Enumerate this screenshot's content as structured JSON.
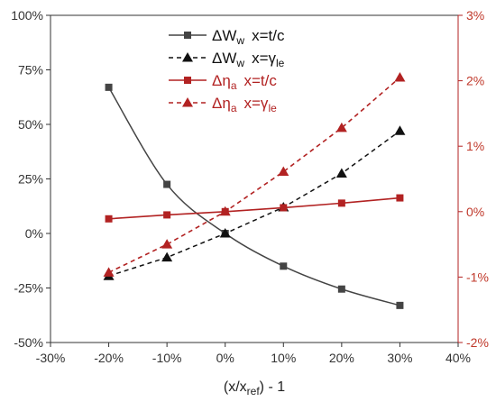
{
  "chart_data": {
    "type": "line",
    "xlabel": "(x/x_ref) - 1",
    "x": [
      -0.2,
      -0.1,
      0.0,
      0.1,
      0.2,
      0.3
    ],
    "xlim": [
      -0.3,
      0.4
    ],
    "x_ticks": [
      "-30%",
      "-20%",
      "-10%",
      "0%",
      "10%",
      "20%",
      "30%",
      "40%"
    ],
    "ylim_left": [
      -0.5,
      1.0
    ],
    "y_ticks_left": [
      "-50%",
      "-25%",
      "0%",
      "25%",
      "50%",
      "75%",
      "100%"
    ],
    "ylim_right": [
      -0.02,
      0.03
    ],
    "y_ticks_right": [
      "-2%",
      "-1%",
      "0%",
      "1%",
      "2%",
      "3%"
    ],
    "grid": false,
    "legend_position": "top-center",
    "series": [
      {
        "name": "ΔW_w  x=t/c",
        "axis": "left",
        "marker": "square",
        "dash": "solid",
        "color": "#444444",
        "values": [
          0.67,
          0.225,
          0.0,
          -0.15,
          -0.255,
          -0.33
        ]
      },
      {
        "name": "ΔW_w  x=γ_le",
        "axis": "left",
        "marker": "triangle",
        "dash": "dashed",
        "color": "#111111",
        "values": [
          -0.195,
          -0.11,
          0.0,
          0.12,
          0.275,
          0.47
        ]
      },
      {
        "name": "Δη_a  x=t/c",
        "axis": "right",
        "marker": "square",
        "dash": "solid",
        "color": "#b22222",
        "values": [
          -0.0011,
          -0.0005,
          0.0,
          0.0006,
          0.0013,
          0.0021
        ]
      },
      {
        "name": "Δη_a  x=γ_le",
        "axis": "right",
        "marker": "triangle",
        "dash": "dashed",
        "color": "#b22222",
        "values": [
          -0.0093,
          -0.005,
          0.0,
          0.0061,
          0.0128,
          0.0205
        ]
      }
    ],
    "legend": [
      {
        "sym": "ΔW",
        "sub": "w",
        "cond": "x=t/c",
        "csub": ""
      },
      {
        "sym": "ΔW",
        "sub": "w",
        "cond": "x=γ",
        "csub": "le"
      },
      {
        "sym": "Δη",
        "sub": "a",
        "cond": "x=t/c",
        "csub": ""
      },
      {
        "sym": "Δη",
        "sub": "a",
        "cond": "x=γ",
        "csub": "le"
      }
    ],
    "xlabel_parts": {
      "pre": "(x/x",
      "sub": "ref",
      "post": ") - 1"
    }
  }
}
